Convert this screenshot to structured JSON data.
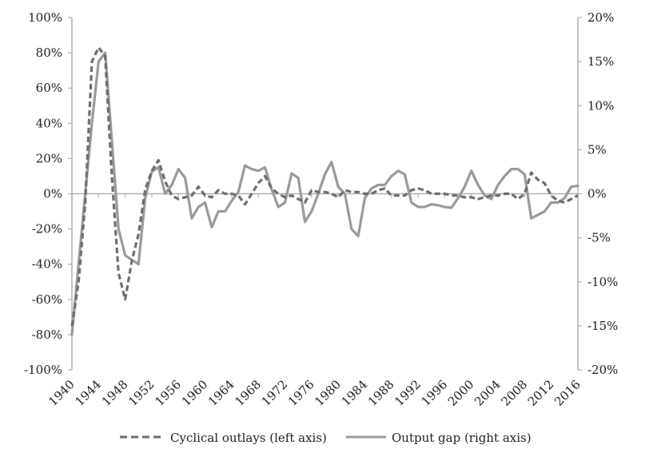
{
  "chart_data": {
    "type": "line",
    "title": "",
    "xlabel": "",
    "ylabel_left": "",
    "ylabel_right": "",
    "x_range": [
      1940,
      2016
    ],
    "x_ticks": [
      "1940",
      "1944",
      "1948",
      "1952",
      "1956",
      "1960",
      "1964",
      "1968",
      "1972",
      "1976",
      "1980",
      "1984",
      "1988",
      "1992",
      "1996",
      "2000",
      "2004",
      "2008",
      "2012",
      "2016"
    ],
    "y_left": {
      "ylim": [
        -100,
        100
      ],
      "ticks": [
        "-100%",
        "-80%",
        "-60%",
        "-40%",
        "-20%",
        "0%",
        "20%",
        "40%",
        "60%",
        "80%",
        "100%"
      ]
    },
    "y_right": {
      "ylim": [
        -20,
        20
      ],
      "ticks": [
        "-20%",
        "-15%",
        "-10%",
        "-5%",
        "0%",
        "5%",
        "10%",
        "15%",
        "20%"
      ]
    },
    "grid": false,
    "legend_position": "bottom",
    "series": [
      {
        "name": "Cyclical outlays (left axis)",
        "axis": "left",
        "style": "dashed",
        "color": "#6e6e6e",
        "x": [
          1940,
          1941,
          1942,
          1943,
          1944,
          1945,
          1946,
          1947,
          1948,
          1949,
          1950,
          1951,
          1952,
          1953,
          1954,
          1955,
          1956,
          1957,
          1958,
          1959,
          1960,
          1961,
          1962,
          1963,
          1964,
          1965,
          1966,
          1967,
          1968,
          1969,
          1970,
          1971,
          1972,
          1973,
          1974,
          1975,
          1976,
          1977,
          1978,
          1979,
          1980,
          1981,
          1982,
          1983,
          1984,
          1985,
          1986,
          1987,
          1988,
          1989,
          1990,
          1991,
          1992,
          1993,
          1994,
          1995,
          1996,
          1997,
          1998,
          1999,
          2000,
          2001,
          2002,
          2003,
          2004,
          2005,
          2006,
          2007,
          2008,
          2009,
          2010,
          2011,
          2012,
          2013,
          2014,
          2015,
          2016
        ],
        "values": [
          -75,
          -50,
          -5,
          75,
          83,
          78,
          10,
          -45,
          -60,
          -38,
          -23,
          2,
          13,
          19,
          7,
          -1,
          -3,
          -2,
          -1,
          4,
          -1,
          -2,
          2,
          0,
          0,
          -1,
          -6,
          0,
          6,
          10,
          3,
          0,
          -2,
          -1,
          -3,
          -5,
          2,
          1,
          1,
          0,
          -2,
          2,
          1,
          1,
          0,
          0,
          2,
          3,
          -1,
          -1,
          -1,
          2,
          3,
          2,
          0,
          0,
          0,
          -1,
          -1,
          -2,
          -2,
          -3,
          -2,
          -1,
          -1,
          0,
          0,
          -3,
          0,
          12,
          8,
          6,
          -1,
          -4,
          -5,
          -3,
          -1
        ]
      },
      {
        "name": "Output gap (right axis)",
        "axis": "right",
        "style": "solid",
        "color": "#9a9a9a",
        "x": [
          1940,
          1941,
          1942,
          1943,
          1944,
          1945,
          1946,
          1947,
          1948,
          1949,
          1950,
          1951,
          1952,
          1953,
          1954,
          1955,
          1956,
          1957,
          1958,
          1959,
          1960,
          1961,
          1962,
          1963,
          1964,
          1965,
          1966,
          1967,
          1968,
          1969,
          1970,
          1971,
          1972,
          1973,
          1974,
          1975,
          1976,
          1977,
          1978,
          1979,
          1980,
          1981,
          1982,
          1983,
          1984,
          1985,
          1986,
          1987,
          1988,
          1989,
          1990,
          1991,
          1992,
          1993,
          1994,
          1995,
          1996,
          1997,
          1998,
          1999,
          2000,
          2001,
          2002,
          2003,
          2004,
          2005,
          2006,
          2007,
          2008,
          2009,
          2010,
          2011,
          2012,
          2013,
          2014,
          2015,
          2016
        ],
        "values": [
          -16,
          -8,
          0,
          8,
          15,
          16,
          6,
          -4,
          -7,
          -7.5,
          -8,
          -0.5,
          2.5,
          3,
          0,
          1,
          2.8,
          1.8,
          -2.8,
          -1.5,
          -1,
          -3.8,
          -2,
          -2,
          -0.8,
          0.2,
          3.2,
          2.8,
          2.6,
          3,
          0.5,
          -1.5,
          -1,
          2.3,
          1.8,
          -3.2,
          -2,
          0,
          2.2,
          3.6,
          0.8,
          0,
          -4,
          -4.8,
          -0.5,
          0.6,
          1,
          1,
          2,
          2.6,
          2.2,
          -1,
          -1.5,
          -1.5,
          -1.2,
          -1.3,
          -1.5,
          -1.6,
          -0.5,
          0.8,
          2.6,
          1,
          -0.2,
          -0.6,
          1,
          2,
          2.8,
          2.8,
          2.2,
          -2.8,
          -2.4,
          -2,
          -1,
          -1,
          -0.5,
          0.8,
          0.9
        ]
      }
    ]
  }
}
